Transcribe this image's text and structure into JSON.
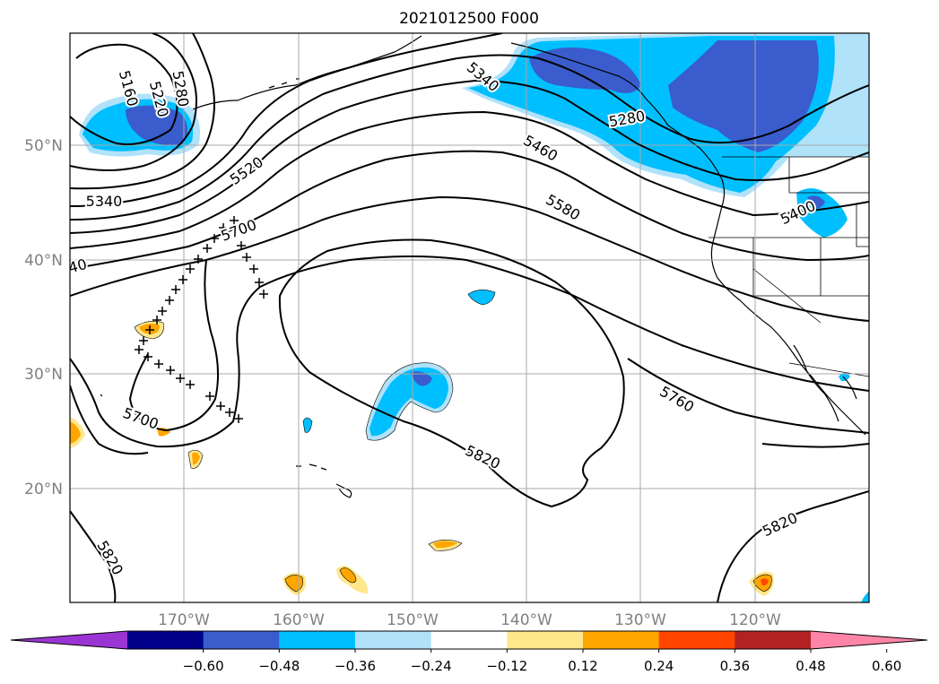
{
  "title": "2021012500 F000",
  "lat_labels": [
    "50°N",
    "40°N",
    "30°N",
    "20°N"
  ],
  "lon_labels": [
    "170°W",
    "160°W",
    "150°W",
    "140°W",
    "130°W",
    "120°W"
  ],
  "contour_labels": {
    "c5160": "5160",
    "c5280a": "5280",
    "c5220": "5220",
    "c5340a": "5340",
    "c5520": "5520",
    "c5700a": "5700",
    "c40": "40",
    "c5340b": "5340",
    "c5460": "5460",
    "c5580": "5580",
    "c5280b": "5280",
    "c5400": "5400",
    "c5760": "5760",
    "c5700b": "5700",
    "c5820a": "5820",
    "c5820b": "5820",
    "c5820c": "5820"
  },
  "colorbar": {
    "labels": [
      "−0.60",
      "−0.48",
      "−0.36",
      "−0.24",
      "−0.12",
      "0.12",
      "0.24",
      "0.36",
      "0.48",
      "0.60"
    ],
    "colors": [
      "#9a35d3",
      "#00008b",
      "#3a5ccc",
      "#00bfff",
      "#b0e2fa",
      "#ffffff",
      "#ffe88c",
      "#ffa500",
      "#ff4500",
      "#b22222",
      "#ff85a8"
    ]
  },
  "fill_colors": {
    "light_blue": "#b0e2fa",
    "cyan": "#00bfff",
    "royal_blue": "#3a5ccc",
    "light_yellow": "#ffe88c",
    "orange": "#ffa500",
    "red_orange": "#ff4500"
  }
}
